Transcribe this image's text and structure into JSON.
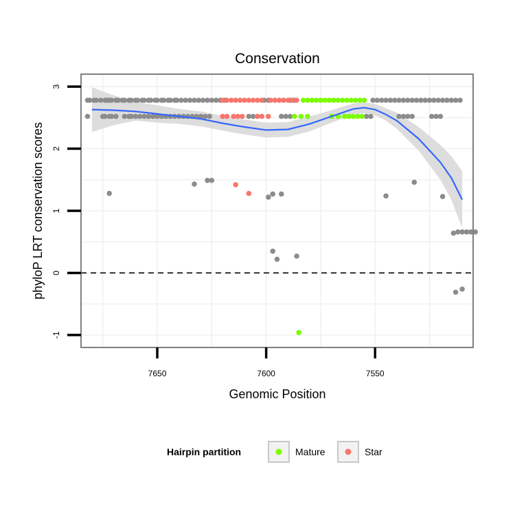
{
  "chart_data": {
    "type": "scatter",
    "title": "Conservation",
    "xlabel": "Genomic Position",
    "ylabel": "phyloP LRT conservation scores",
    "x_reversed": true,
    "xlim": [
      7685,
      7505
    ],
    "ylim": [
      -1.2,
      3.2
    ],
    "xticks": [
      7650,
      7600,
      7550
    ],
    "xtick_labels": [
      "7650",
      "7600",
      "7550"
    ],
    "yticks": [
      -1,
      0,
      1,
      2,
      3
    ],
    "ytick_labels": [
      "-1",
      "0",
      "1",
      "2",
      "3"
    ],
    "hline": {
      "y": 0,
      "style": "dashed"
    },
    "grid": true,
    "legend": {
      "title": "Hairpin partition",
      "position": "bottom",
      "entries": [
        {
          "label": "Mature",
          "color": "#7CFC00"
        },
        {
          "label": "Star",
          "color": "#F8766D"
        }
      ]
    },
    "colors": {
      "Other": "#8C8C8C",
      "Mature": "#7CFC00",
      "Star": "#F8766D",
      "smooth": "#3366FF",
      "ribbon": "#D9D9D9",
      "panel_border": "#7F7F7F"
    },
    "points": {
      "Other": [
        [
          7682,
          2.78
        ],
        [
          7681,
          2.78
        ],
        [
          7679,
          2.78
        ],
        [
          7678,
          2.78
        ],
        [
          7676,
          2.78
        ],
        [
          7674,
          2.78
        ],
        [
          7673,
          2.78
        ],
        [
          7672,
          2.78
        ],
        [
          7671,
          2.78
        ],
        [
          7669,
          2.78
        ],
        [
          7668,
          2.78
        ],
        [
          7666,
          2.78
        ],
        [
          7665,
          2.78
        ],
        [
          7663,
          2.78
        ],
        [
          7662,
          2.78
        ],
        [
          7660,
          2.78
        ],
        [
          7659,
          2.78
        ],
        [
          7657,
          2.78
        ],
        [
          7656,
          2.78
        ],
        [
          7654,
          2.78
        ],
        [
          7653,
          2.78
        ],
        [
          7651,
          2.78
        ],
        [
          7650,
          2.78
        ],
        [
          7648,
          2.78
        ],
        [
          7647,
          2.78
        ],
        [
          7645,
          2.78
        ],
        [
          7644,
          2.78
        ],
        [
          7642,
          2.78
        ],
        [
          7641,
          2.78
        ],
        [
          7639,
          2.78
        ],
        [
          7637,
          2.78
        ],
        [
          7635,
          2.78
        ],
        [
          7633,
          2.78
        ],
        [
          7631,
          2.78
        ],
        [
          7629,
          2.78
        ],
        [
          7627,
          2.78
        ],
        [
          7625,
          2.78
        ],
        [
          7623,
          2.78
        ],
        [
          7621,
          2.78
        ],
        [
          7619,
          2.78
        ],
        [
          7601,
          2.78
        ],
        [
          7599,
          2.78
        ],
        [
          7596,
          2.78
        ],
        [
          7594,
          2.78
        ],
        [
          7592,
          2.78
        ],
        [
          7589,
          2.78
        ],
        [
          7587,
          2.78
        ],
        [
          7551,
          2.78
        ],
        [
          7549,
          2.78
        ],
        [
          7547,
          2.78
        ],
        [
          7545,
          2.78
        ],
        [
          7543,
          2.78
        ],
        [
          7541,
          2.78
        ],
        [
          7539,
          2.78
        ],
        [
          7537,
          2.78
        ],
        [
          7535,
          2.78
        ],
        [
          7533,
          2.78
        ],
        [
          7531,
          2.78
        ],
        [
          7529,
          2.78
        ],
        [
          7527,
          2.78
        ],
        [
          7525,
          2.78
        ],
        [
          7523,
          2.78
        ],
        [
          7521,
          2.78
        ],
        [
          7519,
          2.78
        ],
        [
          7517,
          2.78
        ],
        [
          7515,
          2.78
        ],
        [
          7513,
          2.78
        ],
        [
          7511,
          2.78
        ],
        [
          7682,
          2.52
        ],
        [
          7675,
          2.52
        ],
        [
          7674,
          2.52
        ],
        [
          7672,
          2.52
        ],
        [
          7671,
          2.52
        ],
        [
          7669,
          2.52
        ],
        [
          7665,
          2.52
        ],
        [
          7663,
          2.52
        ],
        [
          7662,
          2.52
        ],
        [
          7660,
          2.52
        ],
        [
          7658,
          2.52
        ],
        [
          7656,
          2.52
        ],
        [
          7654,
          2.52
        ],
        [
          7652,
          2.52
        ],
        [
          7650,
          2.52
        ],
        [
          7648,
          2.52
        ],
        [
          7646,
          2.52
        ],
        [
          7644,
          2.52
        ],
        [
          7642,
          2.52
        ],
        [
          7640,
          2.52
        ],
        [
          7638,
          2.52
        ],
        [
          7636,
          2.52
        ],
        [
          7634,
          2.52
        ],
        [
          7632,
          2.52
        ],
        [
          7630,
          2.52
        ],
        [
          7628,
          2.52
        ],
        [
          7626,
          2.52
        ],
        [
          7608,
          2.52
        ],
        [
          7606,
          2.52
        ],
        [
          7593,
          2.52
        ],
        [
          7591,
          2.52
        ],
        [
          7589,
          2.52
        ],
        [
          7554,
          2.52
        ],
        [
          7552,
          2.52
        ],
        [
          7539,
          2.52
        ],
        [
          7537,
          2.52
        ],
        [
          7535,
          2.52
        ],
        [
          7533,
          2.52
        ],
        [
          7524,
          2.52
        ],
        [
          7522,
          2.52
        ],
        [
          7520,
          2.52
        ],
        [
          7672,
          1.28
        ],
        [
          7633,
          1.43
        ],
        [
          7627,
          1.49
        ],
        [
          7625,
          1.49
        ],
        [
          7599,
          1.22
        ],
        [
          7597,
          1.27
        ],
        [
          7593,
          1.27
        ],
        [
          7545,
          1.24
        ],
        [
          7532,
          1.46
        ],
        [
          7519,
          1.23
        ],
        [
          7597,
          0.35
        ],
        [
          7595,
          0.22
        ],
        [
          7586,
          0.27
        ],
        [
          7514,
          0.64
        ],
        [
          7512,
          0.66
        ],
        [
          7510,
          0.66
        ],
        [
          7508,
          0.66
        ],
        [
          7506,
          0.66
        ],
        [
          7504,
          0.66
        ],
        [
          7513,
          -0.31
        ],
        [
          7510,
          -0.26
        ]
      ],
      "Mature": [
        [
          7583,
          2.78
        ],
        [
          7581,
          2.78
        ],
        [
          7579,
          2.78
        ],
        [
          7577,
          2.78
        ],
        [
          7575,
          2.78
        ],
        [
          7573,
          2.78
        ],
        [
          7571,
          2.78
        ],
        [
          7569,
          2.78
        ],
        [
          7567,
          2.78
        ],
        [
          7565,
          2.78
        ],
        [
          7563,
          2.78
        ],
        [
          7561,
          2.78
        ],
        [
          7559,
          2.78
        ],
        [
          7557,
          2.78
        ],
        [
          7555,
          2.78
        ],
        [
          7587,
          2.52
        ],
        [
          7584,
          2.52
        ],
        [
          7581,
          2.52
        ],
        [
          7570,
          2.52
        ],
        [
          7567,
          2.52
        ],
        [
          7564,
          2.52
        ],
        [
          7562,
          2.52
        ],
        [
          7560,
          2.52
        ],
        [
          7558,
          2.52
        ],
        [
          7556,
          2.52
        ],
        [
          7585,
          -0.96
        ]
      ],
      "Star": [
        [
          7620,
          2.78
        ],
        [
          7618,
          2.78
        ],
        [
          7616,
          2.78
        ],
        [
          7614,
          2.78
        ],
        [
          7612,
          2.78
        ],
        [
          7610,
          2.78
        ],
        [
          7608,
          2.78
        ],
        [
          7606,
          2.78
        ],
        [
          7604,
          2.78
        ],
        [
          7602,
          2.78
        ],
        [
          7598,
          2.78
        ],
        [
          7596,
          2.78
        ],
        [
          7594,
          2.78
        ],
        [
          7592,
          2.78
        ],
        [
          7590,
          2.78
        ],
        [
          7588,
          2.78
        ],
        [
          7586,
          2.78
        ],
        [
          7620,
          2.52
        ],
        [
          7618,
          2.52
        ],
        [
          7615,
          2.52
        ],
        [
          7613,
          2.52
        ],
        [
          7611,
          2.52
        ],
        [
          7604,
          2.52
        ],
        [
          7602,
          2.52
        ],
        [
          7599,
          2.52
        ],
        [
          7614,
          1.42
        ],
        [
          7608,
          1.28
        ]
      ]
    },
    "smooth": {
      "x": [
        7680,
        7670,
        7660,
        7650,
        7640,
        7630,
        7620,
        7610,
        7600,
        7590,
        7580,
        7570,
        7560,
        7555,
        7550,
        7545,
        7540,
        7530,
        7520,
        7515,
        7510
      ],
      "y": [
        2.63,
        2.62,
        2.6,
        2.56,
        2.52,
        2.48,
        2.41,
        2.35,
        2.3,
        2.31,
        2.4,
        2.52,
        2.64,
        2.66,
        2.63,
        2.55,
        2.45,
        2.16,
        1.78,
        1.53,
        1.18
      ],
      "lower": [
        2.27,
        2.38,
        2.45,
        2.42,
        2.4,
        2.36,
        2.29,
        2.23,
        2.18,
        2.19,
        2.28,
        2.42,
        2.55,
        2.57,
        2.54,
        2.45,
        2.32,
        1.97,
        1.5,
        1.18,
        0.72
      ],
      "upper": [
        2.99,
        2.86,
        2.75,
        2.7,
        2.64,
        2.6,
        2.53,
        2.47,
        2.42,
        2.43,
        2.52,
        2.62,
        2.73,
        2.75,
        2.72,
        2.65,
        2.58,
        2.35,
        2.06,
        1.88,
        1.64
      ]
    }
  }
}
